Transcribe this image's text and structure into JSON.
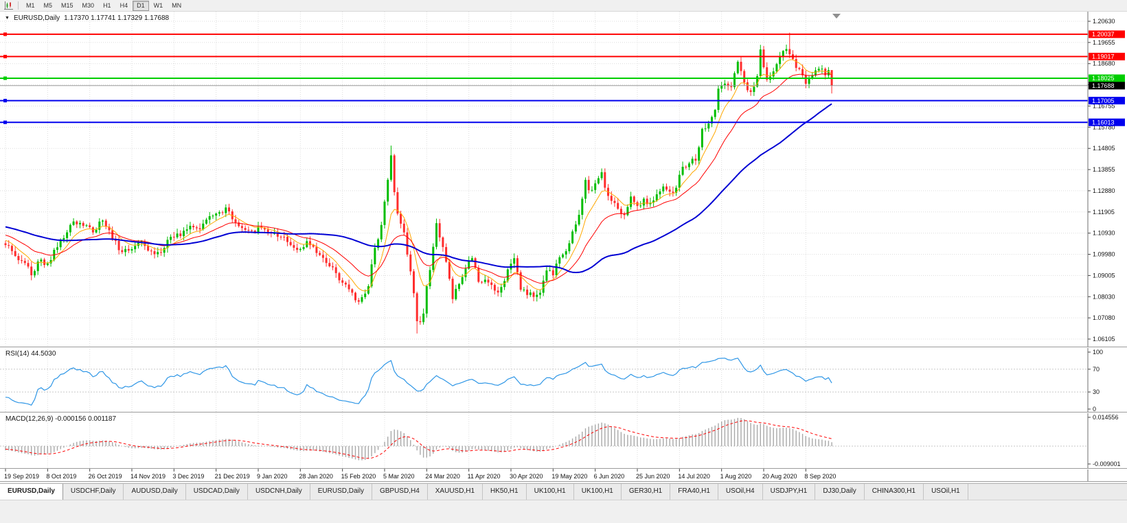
{
  "toolbar": {
    "timeframes": [
      "M1",
      "M5",
      "M15",
      "M30",
      "H1",
      "H4",
      "D1",
      "W1",
      "MN"
    ],
    "active_timeframe": "D1"
  },
  "chart_header": {
    "symbol": "EURUSD,Daily",
    "ohlc": "1.17370 1.17741 1.17329 1.17688"
  },
  "rsi_panel": {
    "label": "RSI(14) 44.5030"
  },
  "macd_panel": {
    "label": "MACD(12,26,9) -0.000156 0.001187"
  },
  "tabs": {
    "active_index": 0,
    "items": [
      "EURUSD,Daily",
      "USDCHF,Daily",
      "AUDUSD,Daily",
      "USDCAD,Daily",
      "USDCNH,Daily",
      "EURUSD,Daily",
      "GBPUSD,H4",
      "XAUUSD,H1",
      "HK50,H1",
      "UK100,H1",
      "UK100,H1",
      "GER30,H1",
      "FRA40,H1",
      "USOil,H4",
      "USDJPY,H1",
      "DJ30,Daily",
      "CHINA300,H1",
      "USOil,H1"
    ],
    "active_tab_label": "EURUSD,Daily"
  },
  "chart_data": {
    "type": "candlestick",
    "symbol": "EURUSD",
    "timeframe": "Daily",
    "bars_visible": 256,
    "up_color": "#00BD00",
    "down_color": "#FF2D2D",
    "price_axis_ticks": [
      "1.20630",
      "1.19655",
      "1.18680",
      "1.17705",
      "1.16755",
      "1.15780",
      "1.14805",
      "1.13855",
      "1.12880",
      "1.11905",
      "1.10930",
      "1.09980",
      "1.09005",
      "1.08030",
      "1.07080",
      "1.06105"
    ],
    "date_axis_ticks": [
      "19 Sep 2019",
      "8 Oct 2019",
      "26 Oct 2019",
      "14 Nov 2019",
      "3 Dec 2019",
      "21 Dec 2019",
      "9 Jan 2020",
      "28 Jan 2020",
      "15 Feb 2020",
      "5 Mar 2020",
      "24 Mar 2020",
      "11 Apr 2020",
      "30 Apr 2020",
      "19 May 2020",
      "6 Jun 2020",
      "25 Jun 2020",
      "14 Jul 2020",
      "1 Aug 2020",
      "20 Aug 2020",
      "8 Sep 2020"
    ],
    "horizontal_lines": [
      {
        "price": 1.20037,
        "color": "#FF0000"
      },
      {
        "price": 1.19017,
        "color": "#FF0000"
      },
      {
        "price": 1.18025,
        "color": "#00CE00"
      },
      {
        "price": 1.17005,
        "color": "#0000EE"
      },
      {
        "price": 1.16013,
        "color": "#0000EE"
      }
    ],
    "last_price": 1.17688,
    "close_anchors": [
      [
        -60,
        1.1255
      ],
      [
        -45,
        1.117
      ],
      [
        -30,
        1.1085
      ],
      [
        -15,
        1.113
      ],
      [
        -5,
        1.1072
      ],
      [
        -1,
        1.1048
      ],
      [
        0,
        1.104
      ],
      [
        3,
        1.099
      ],
      [
        6,
        1.0958
      ],
      [
        8,
        1.0902
      ],
      [
        10,
        1.0965
      ],
      [
        13,
        1.0956
      ],
      [
        16,
        1.103
      ],
      [
        18,
        1.1072
      ],
      [
        21,
        1.1148
      ],
      [
        24,
        1.1128
      ],
      [
        27,
        1.1098
      ],
      [
        30,
        1.1152
      ],
      [
        33,
        1.1068
      ],
      [
        36,
        1.1008
      ],
      [
        39,
        1.1021
      ],
      [
        42,
        1.1058
      ],
      [
        45,
        1.1012
      ],
      [
        48,
        1.1005
      ],
      [
        51,
        1.1078
      ],
      [
        54,
        1.1081
      ],
      [
        57,
        1.1128
      ],
      [
        60,
        1.1112
      ],
      [
        63,
        1.1172
      ],
      [
        66,
        1.119
      ],
      [
        68,
        1.1212
      ],
      [
        70,
        1.1158
      ],
      [
        73,
        1.1118
      ],
      [
        76,
        1.1106
      ],
      [
        79,
        1.1118
      ],
      [
        82,
        1.1094
      ],
      [
        85,
        1.1078
      ],
      [
        88,
        1.104
      ],
      [
        91,
        1.1022
      ],
      [
        93,
        1.1058
      ],
      [
        96,
        1.1004
      ],
      [
        99,
        1.0958
      ],
      [
        102,
        1.0912
      ],
      [
        104,
        1.0868
      ],
      [
        106,
        1.0838
      ],
      [
        108,
        1.0788
      ],
      [
        110,
        1.0802
      ],
      [
        112,
        1.0852
      ],
      [
        114,
        1.1027
      ],
      [
        116,
        1.1132
      ],
      [
        117,
        1.1239
      ],
      [
        119,
        1.145
      ],
      [
        120,
        1.1282
      ],
      [
        121,
        1.1184
      ],
      [
        123,
        1.1098
      ],
      [
        125,
        1.092
      ],
      [
        127,
        1.0692
      ],
      [
        128,
        1.0688
      ],
      [
        129,
        1.0727
      ],
      [
        130,
        1.0852
      ],
      [
        132,
        1.1032
      ],
      [
        133,
        1.114
      ],
      [
        135,
        1.1031
      ],
      [
        136,
        1.0964
      ],
      [
        138,
        1.0793
      ],
      [
        140,
        1.0862
      ],
      [
        142,
        1.0932
      ],
      [
        144,
        1.098
      ],
      [
        146,
        1.0872
      ],
      [
        148,
        1.0882
      ],
      [
        150,
        1.0858
      ],
      [
        152,
        1.0823
      ],
      [
        154,
        1.0876
      ],
      [
        156,
        1.0955
      ],
      [
        157,
        1.098
      ],
      [
        159,
        1.0836
      ],
      [
        161,
        1.0812
      ],
      [
        163,
        1.0803
      ],
      [
        165,
        1.0822
      ],
      [
        167,
        1.0924
      ],
      [
        169,
        1.0902
      ],
      [
        171,
        1.0984
      ],
      [
        173,
        1.1012
      ],
      [
        175,
        1.1102
      ],
      [
        176,
        1.1134
      ],
      [
        178,
        1.1252
      ],
      [
        179,
        1.1338
      ],
      [
        180,
        1.1291
      ],
      [
        182,
        1.1322
      ],
      [
        184,
        1.1373
      ],
      [
        185,
        1.1302
      ],
      [
        187,
        1.1242
      ],
      [
        189,
        1.1206
      ],
      [
        191,
        1.1177
      ],
      [
        193,
        1.1262
      ],
      [
        195,
        1.1219
      ],
      [
        197,
        1.1252
      ],
      [
        199,
        1.1234
      ],
      [
        201,
        1.1272
      ],
      [
        203,
        1.1308
      ],
      [
        205,
        1.1284
      ],
      [
        207,
        1.1302
      ],
      [
        209,
        1.1398
      ],
      [
        211,
        1.1413
      ],
      [
        213,
        1.1426
      ],
      [
        215,
        1.1571
      ],
      [
        217,
        1.1596
      ],
      [
        219,
        1.1658
      ],
      [
        220,
        1.1755
      ],
      [
        222,
        1.1778
      ],
      [
        224,
        1.1762
      ],
      [
        226,
        1.1878
      ],
      [
        228,
        1.1784
      ],
      [
        230,
        1.174
      ],
      [
        232,
        1.1812
      ],
      [
        233,
        1.1934
      ],
      [
        235,
        1.1796
      ],
      [
        237,
        1.1834
      ],
      [
        239,
        1.1902
      ],
      [
        241,
        1.1936
      ],
      [
        242,
        1.1912
      ],
      [
        244,
        1.185
      ],
      [
        246,
        1.1816
      ],
      [
        247,
        1.1777
      ],
      [
        249,
        1.1815
      ],
      [
        251,
        1.1846
      ],
      [
        253,
        1.1816
      ],
      [
        254,
        1.184
      ],
      [
        255,
        1.17688
      ]
    ],
    "wick_overrides": {
      "8": {
        "low": 1.0879
      },
      "108": {
        "low": 1.0777
      },
      "119": {
        "high": 1.1495
      },
      "127": {
        "low": 1.0636
      },
      "242": {
        "high": 1.2011
      },
      "255": {
        "high": 1.17741,
        "low": 1.17329
      }
    },
    "moving_averages": [
      {
        "type": "ema",
        "period": 8,
        "color": "#FFA800",
        "width": 1
      },
      {
        "type": "ema",
        "period": 21,
        "color": "#FF0000",
        "width": 1
      },
      {
        "type": "sma",
        "period": 55,
        "color": "#0000D4",
        "width": 2
      }
    ],
    "rsi": {
      "period": 14,
      "last_value": 44.503,
      "color": "#2E96E6",
      "levels": [
        70,
        30
      ],
      "scale_ticks": [
        "100",
        "70",
        "30",
        "0"
      ]
    },
    "macd": {
      "fast": 12,
      "slow": 26,
      "signal": 9,
      "last_macd": -0.000156,
      "last_signal": 0.001187,
      "scale_max": "0.014556",
      "scale_min": "-0.009001",
      "histogram_color": "#A8A8A8",
      "signal_color": "#FF0000"
    }
  }
}
